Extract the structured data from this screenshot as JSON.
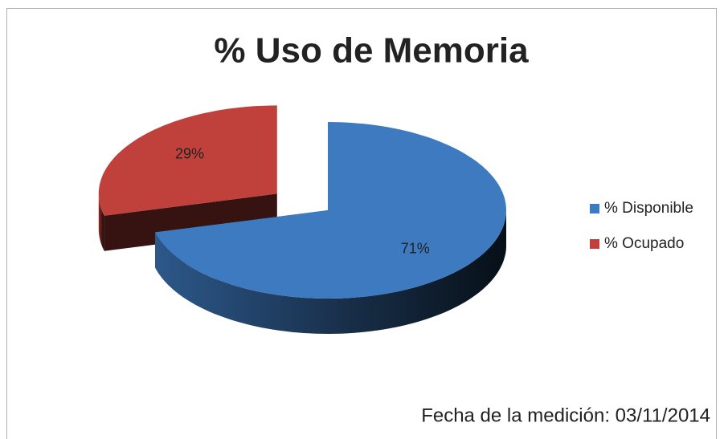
{
  "chart_data": {
    "type": "pie3d",
    "title": "% Uso de Memoria",
    "categories": [
      "% Disponible",
      "% Ocupado"
    ],
    "values": [
      71,
      29
    ],
    "value_labels": [
      "71%",
      "29%"
    ],
    "colors": [
      "#3e7ac0",
      "#c0403c"
    ],
    "legend": "right",
    "annotation": "Fecha de la medición: 03/11/2014"
  }
}
